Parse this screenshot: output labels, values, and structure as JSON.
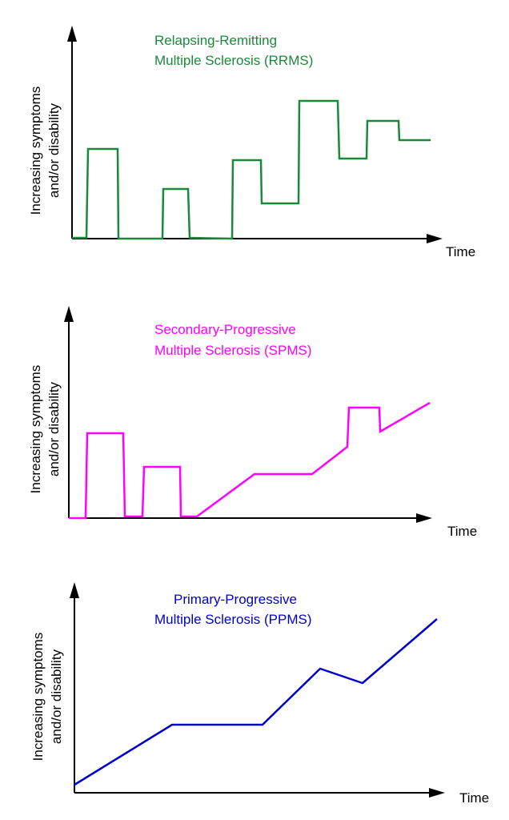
{
  "panels": [
    {
      "title": [
        "Relapsing-Remitting",
        "Multiple Sclerosis (RRMS)"
      ],
      "y_label": [
        "Increasing symptoms",
        "and/or disability"
      ],
      "x_label": "Time"
    },
    {
      "title": [
        "Secondary-Progressive",
        "Multiple Sclerosis (SPMS)"
      ],
      "y_label": [
        "Increasing symptoms",
        "and/or disability"
      ],
      "x_label": "Time"
    },
    {
      "title": [
        "Primary-Progressive",
        "Multiple Sclerosis (PPMS)"
      ],
      "y_label": [
        "Increasing symptoms",
        "and/or disability"
      ],
      "x_label": "Time"
    }
  ]
}
